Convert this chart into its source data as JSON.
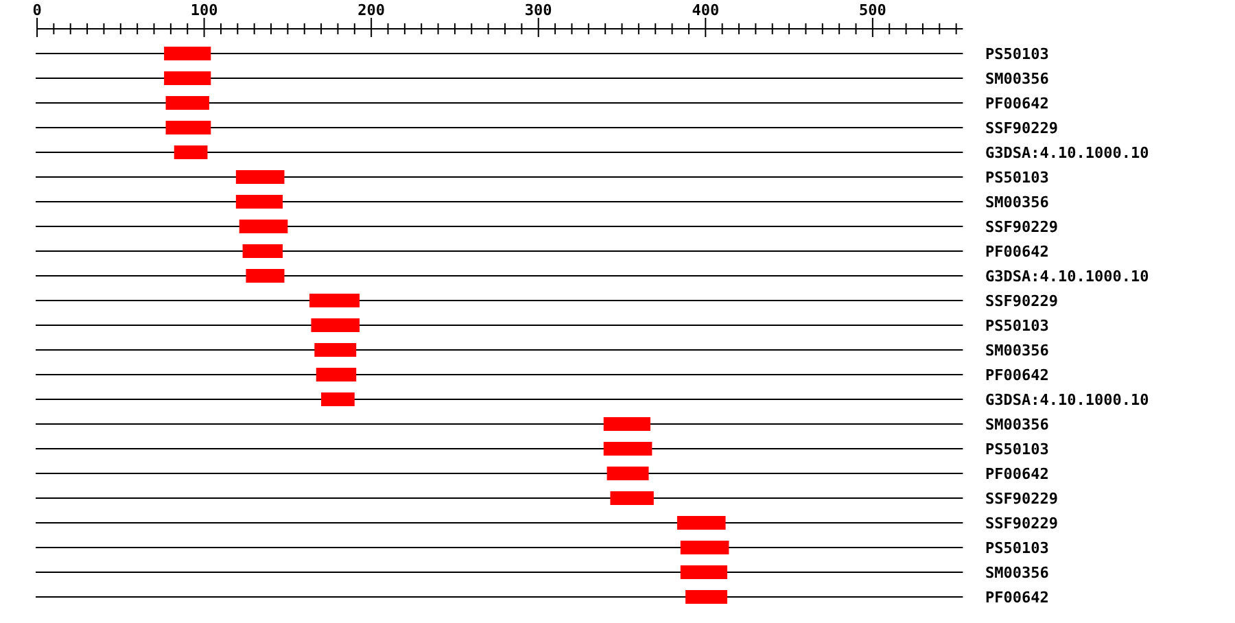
{
  "chart_data": {
    "type": "bar",
    "orientation": "horizontal",
    "grid": "y",
    "categories": [
      "PS50103",
      "SM00356",
      "PF00642",
      "SSF90229",
      "G3DSA:4.10.1000.10",
      "PS50103",
      "SM00356",
      "SSF90229",
      "PF00642",
      "G3DSA:4.10.1000.10",
      "SSF90229",
      "PS50103",
      "SM00356",
      "PF00642",
      "G3DSA:4.10.1000.10",
      "SM00356",
      "PS50103",
      "PF00642",
      "SSF90229",
      "SSF90229",
      "PS50103",
      "SM00356",
      "PF00642"
    ],
    "base": [
      76,
      76,
      77,
      77,
      82,
      119,
      119,
      121,
      123,
      125,
      163,
      164,
      166,
      167,
      170,
      339,
      339,
      341,
      343,
      383,
      385,
      385,
      388
    ],
    "values": [
      28,
      28,
      26,
      27,
      20,
      29,
      28,
      29,
      24,
      23,
      30,
      29,
      25,
      24,
      20,
      28,
      29,
      25,
      26,
      29,
      29,
      28,
      25
    ],
    "color": "#ff0000",
    "xlim": [
      0,
      554
    ],
    "xticks": [
      0,
      {
        "value": 10,
        "label": null
      },
      {
        "value": 20,
        "label": null
      },
      {
        "value": 30,
        "label": null
      },
      {
        "value": 40,
        "label": null
      },
      {
        "value": 50,
        "label": null
      },
      {
        "value": 60,
        "label": null
      },
      {
        "value": 70,
        "label": null
      },
      {
        "value": 80,
        "label": null
      },
      {
        "value": 90,
        "label": null
      },
      100,
      {
        "value": 110,
        "label": null
      },
      {
        "value": 120,
        "label": null
      },
      {
        "value": 130,
        "label": null
      },
      {
        "value": 140,
        "label": null
      },
      {
        "value": 150,
        "label": null
      },
      {
        "value": 160,
        "label": null
      },
      {
        "value": 170,
        "label": null
      },
      {
        "value": 180,
        "label": null
      },
      {
        "value": 190,
        "label": null
      },
      200,
      {
        "value": 210,
        "label": null
      },
      {
        "value": 220,
        "label": null
      },
      {
        "value": 230,
        "label": null
      },
      {
        "value": 240,
        "label": null
      },
      {
        "value": 250,
        "label": null
      },
      {
        "value": 260,
        "label": null
      },
      {
        "value": 270,
        "label": null
      },
      {
        "value": 280,
        "label": null
      },
      {
        "value": 290,
        "label": null
      },
      300,
      {
        "value": 310,
        "label": null
      },
      {
        "value": 320,
        "label": null
      },
      {
        "value": 330,
        "label": null
      },
      {
        "value": 340,
        "label": null
      },
      {
        "value": 350,
        "label": null
      },
      {
        "value": 360,
        "label": null
      },
      {
        "value": 370,
        "label": null
      },
      {
        "value": 380,
        "label": null
      },
      {
        "value": 390,
        "label": null
      },
      400,
      {
        "value": 410,
        "label": null
      },
      {
        "value": 420,
        "label": null
      },
      {
        "value": 430,
        "label": null
      },
      {
        "value": 440,
        "label": null
      },
      {
        "value": 450,
        "label": null
      },
      {
        "value": 460,
        "label": null
      },
      {
        "value": 470,
        "label": null
      },
      {
        "value": 480,
        "label": null
      },
      {
        "value": 490,
        "label": null
      },
      500,
      {
        "value": 510,
        "label": null
      },
      {
        "value": 520,
        "label": null
      },
      {
        "value": 530,
        "label": null
      },
      {
        "value": 540,
        "label": null
      },
      {
        "value": 550,
        "label": null
      }
    ]
  }
}
